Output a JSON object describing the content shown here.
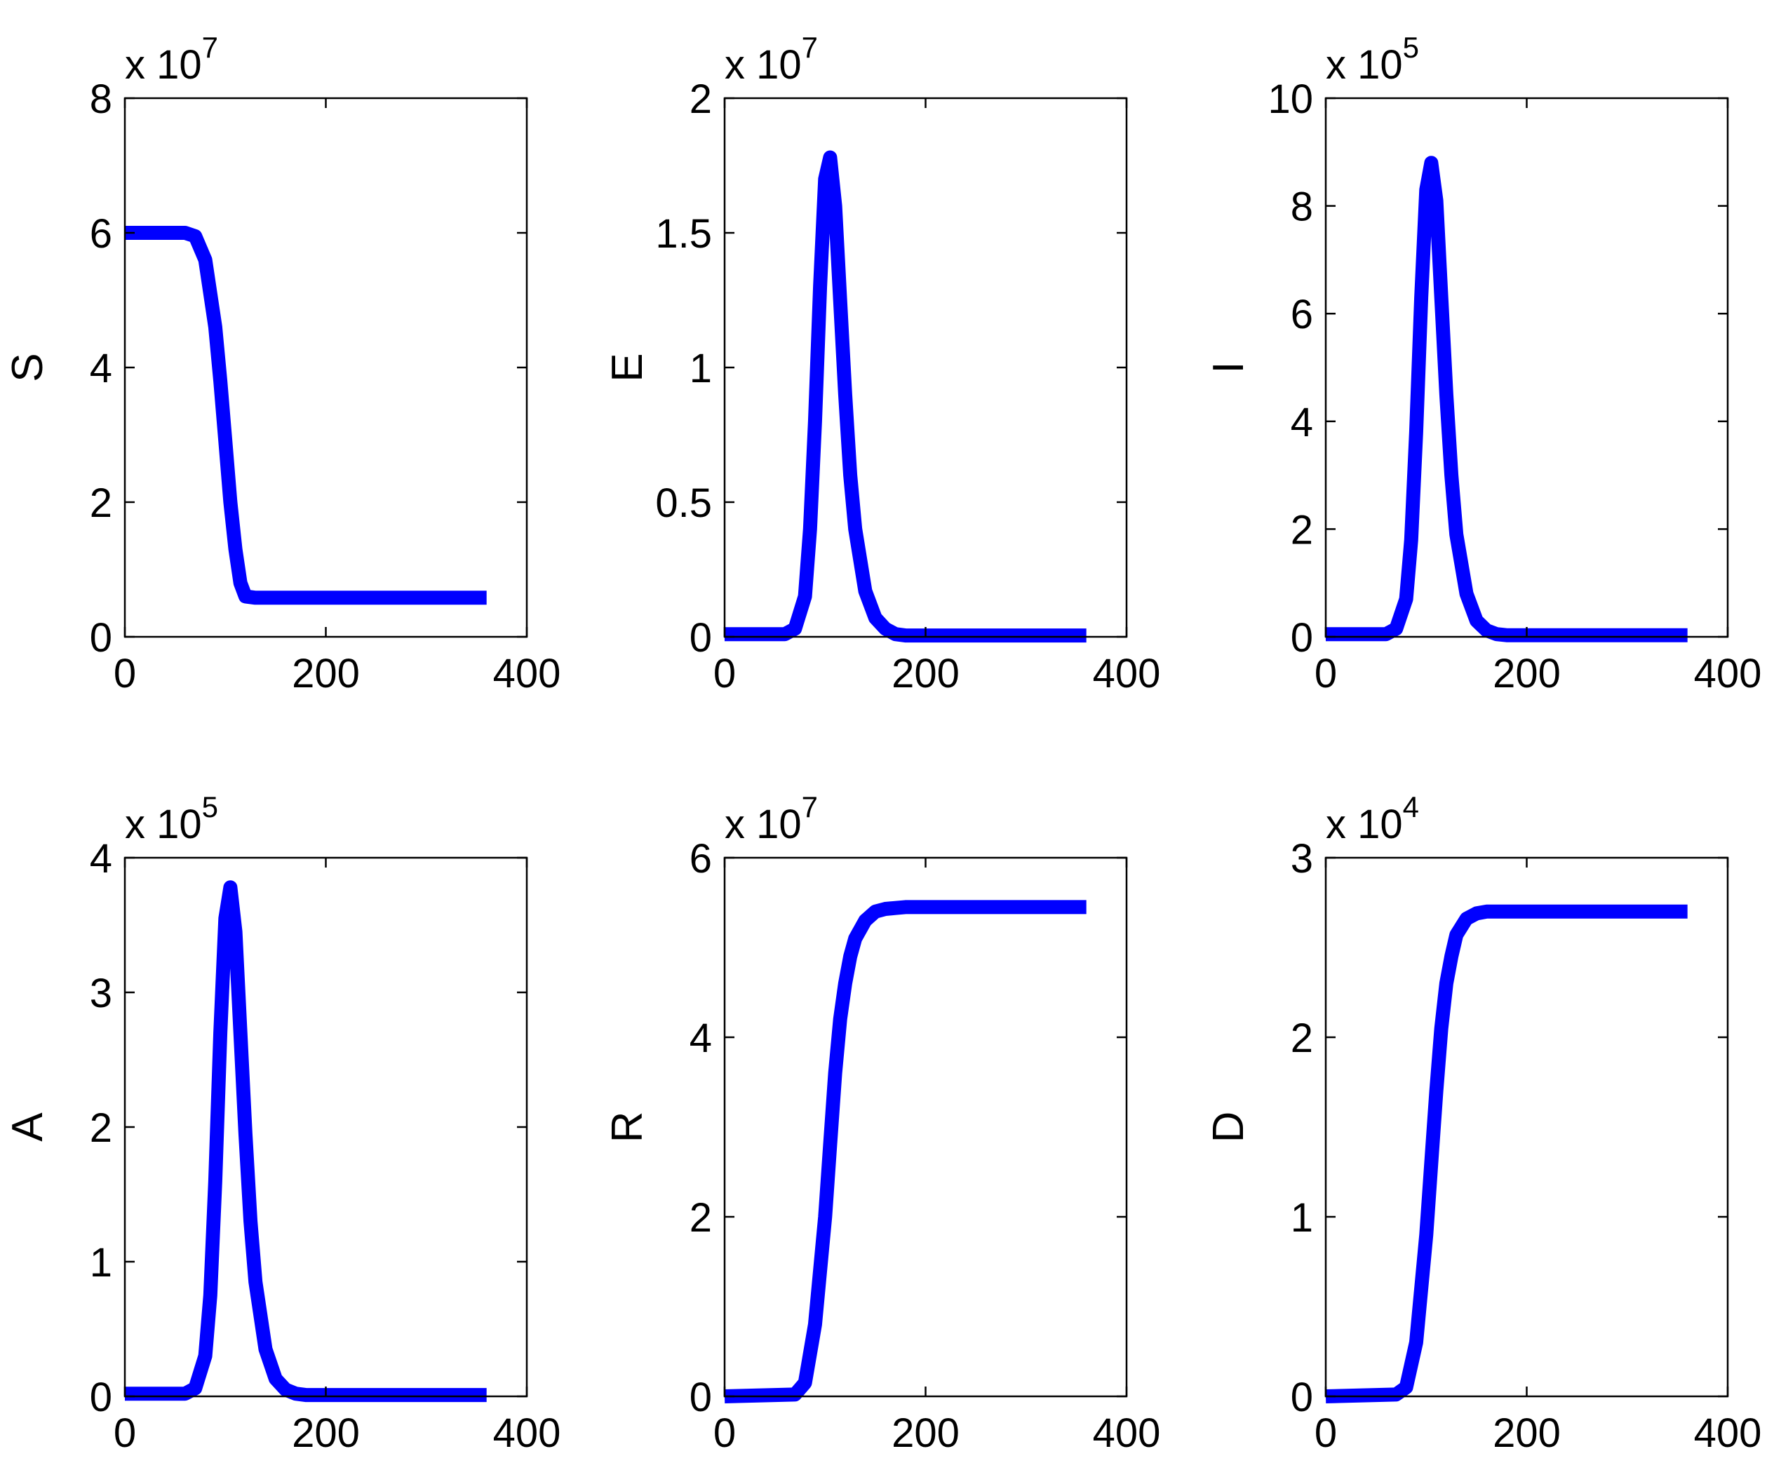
{
  "figure": {
    "line_color": "#0000ff",
    "axes_color": "#000000",
    "background": "#ffffff"
  },
  "chart_data": [
    {
      "type": "line",
      "ylabel": "S",
      "exponent": {
        "prefix": "x 10",
        "power": "7"
      },
      "xlim": [
        0,
        400
      ],
      "ylim": [
        0,
        8
      ],
      "xticks": [
        0,
        200,
        400
      ],
      "xtick_labels": [
        "0",
        "200",
        "400"
      ],
      "yticks": [
        0,
        2,
        4,
        6,
        8
      ],
      "ytick_labels": [
        "0",
        "2",
        "4",
        "6",
        "8"
      ],
      "grid": false,
      "series": [
        {
          "x": [
            0,
            60,
            70,
            80,
            90,
            95,
            100,
            105,
            110,
            115,
            120,
            130,
            160,
            200,
            360
          ],
          "y": [
            6.0,
            6.0,
            5.95,
            5.6,
            4.6,
            3.8,
            2.9,
            2.0,
            1.3,
            0.8,
            0.6,
            0.58,
            0.58,
            0.58,
            0.58
          ]
        }
      ]
    },
    {
      "type": "line",
      "ylabel": "E",
      "exponent": {
        "prefix": "x 10",
        "power": "7"
      },
      "xlim": [
        0,
        400
      ],
      "ylim": [
        0,
        2
      ],
      "xticks": [
        0,
        200,
        400
      ],
      "xtick_labels": [
        "0",
        "200",
        "400"
      ],
      "yticks": [
        0,
        0.5,
        1,
        1.5,
        2
      ],
      "ytick_labels": [
        "0",
        "0.5",
        "1",
        "1.5",
        "2"
      ],
      "grid": false,
      "series": [
        {
          "x": [
            0,
            60,
            70,
            80,
            85,
            90,
            95,
            100,
            105,
            110,
            115,
            120,
            125,
            130,
            140,
            150,
            160,
            170,
            180,
            360
          ],
          "y": [
            0.01,
            0.01,
            0.03,
            0.15,
            0.4,
            0.8,
            1.3,
            1.7,
            1.78,
            1.6,
            1.25,
            0.9,
            0.6,
            0.4,
            0.17,
            0.07,
            0.03,
            0.01,
            0.005,
            0.005
          ]
        }
      ]
    },
    {
      "type": "line",
      "ylabel": "I",
      "exponent": {
        "prefix": "x 10",
        "power": "5"
      },
      "xlim": [
        0,
        400
      ],
      "ylim": [
        0,
        10
      ],
      "xticks": [
        0,
        200,
        400
      ],
      "xtick_labels": [
        "0",
        "200",
        "400"
      ],
      "yticks": [
        0,
        2,
        4,
        6,
        8,
        10
      ],
      "ytick_labels": [
        "0",
        "2",
        "4",
        "6",
        "8",
        "10"
      ],
      "grid": false,
      "series": [
        {
          "x": [
            0,
            60,
            70,
            80,
            85,
            90,
            95,
            100,
            105,
            110,
            115,
            120,
            125,
            130,
            140,
            150,
            160,
            170,
            180,
            360
          ],
          "y": [
            0.05,
            0.05,
            0.15,
            0.7,
            1.8,
            3.8,
            6.3,
            8.3,
            8.8,
            8.1,
            6.3,
            4.5,
            3.0,
            1.9,
            0.8,
            0.3,
            0.12,
            0.05,
            0.03,
            0.03
          ]
        }
      ]
    },
    {
      "type": "line",
      "ylabel": "A",
      "exponent": {
        "prefix": "x 10",
        "power": "5"
      },
      "xlim": [
        0,
        400
      ],
      "ylim": [
        0,
        4
      ],
      "xticks": [
        0,
        200,
        400
      ],
      "xtick_labels": [
        "0",
        "200",
        "400"
      ],
      "yticks": [
        0,
        1,
        2,
        3,
        4
      ],
      "ytick_labels": [
        "0",
        "1",
        "2",
        "3",
        "4"
      ],
      "grid": false,
      "series": [
        {
          "x": [
            0,
            60,
            70,
            80,
            85,
            90,
            95,
            100,
            105,
            110,
            115,
            120,
            125,
            130,
            140,
            150,
            160,
            170,
            180,
            360
          ],
          "y": [
            0.02,
            0.02,
            0.06,
            0.3,
            0.75,
            1.6,
            2.7,
            3.55,
            3.78,
            3.45,
            2.7,
            1.95,
            1.3,
            0.85,
            0.35,
            0.13,
            0.05,
            0.02,
            0.01,
            0.01
          ]
        }
      ]
    },
    {
      "type": "line",
      "ylabel": "R",
      "exponent": {
        "prefix": "x 10",
        "power": "7"
      },
      "xlim": [
        0,
        400
      ],
      "ylim": [
        0,
        6
      ],
      "xticks": [
        0,
        200,
        400
      ],
      "xtick_labels": [
        "0",
        "200",
        "400"
      ],
      "yticks": [
        0,
        2,
        4,
        6
      ],
      "ytick_labels": [
        "0",
        "2",
        "4",
        "6"
      ],
      "grid": false,
      "series": [
        {
          "x": [
            0,
            70,
            80,
            90,
            100,
            105,
            110,
            115,
            120,
            125,
            130,
            140,
            150,
            160,
            170,
            180,
            200,
            360
          ],
          "y": [
            0.0,
            0.02,
            0.15,
            0.8,
            2.0,
            2.8,
            3.6,
            4.2,
            4.6,
            4.9,
            5.1,
            5.3,
            5.4,
            5.43,
            5.44,
            5.45,
            5.45,
            5.45
          ]
        }
      ]
    },
    {
      "type": "line",
      "ylabel": "D",
      "exponent": {
        "prefix": "x 10",
        "power": "4"
      },
      "xlim": [
        0,
        400
      ],
      "ylim": [
        0,
        3
      ],
      "xticks": [
        0,
        200,
        400
      ],
      "xtick_labels": [
        "0",
        "200",
        "400"
      ],
      "yticks": [
        0,
        1,
        2,
        3
      ],
      "ytick_labels": [
        "0",
        "1",
        "2",
        "3"
      ],
      "grid": false,
      "series": [
        {
          "x": [
            0,
            70,
            80,
            90,
            100,
            105,
            110,
            115,
            120,
            125,
            130,
            140,
            150,
            160,
            170,
            180,
            200,
            360
          ],
          "y": [
            0.0,
            0.01,
            0.05,
            0.3,
            0.9,
            1.3,
            1.7,
            2.05,
            2.3,
            2.45,
            2.57,
            2.66,
            2.69,
            2.7,
            2.7,
            2.7,
            2.7,
            2.7
          ]
        }
      ]
    }
  ]
}
